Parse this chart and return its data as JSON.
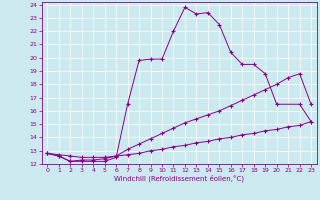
{
  "xlabel": "Windchill (Refroidissement éolien,°C)",
  "background_color": "#cde9f0",
  "line_color": "#880088",
  "xlim": [
    -0.5,
    23.5
  ],
  "ylim": [
    12,
    24.2
  ],
  "xticks": [
    0,
    1,
    2,
    3,
    4,
    5,
    6,
    7,
    8,
    9,
    10,
    11,
    12,
    13,
    14,
    15,
    16,
    17,
    18,
    19,
    20,
    21,
    22,
    23
  ],
  "yticks": [
    12,
    13,
    14,
    15,
    16,
    17,
    18,
    19,
    20,
    21,
    22,
    23,
    24
  ],
  "line1_x": [
    0,
    1,
    2,
    3,
    4,
    5,
    6,
    7,
    8,
    9,
    10,
    11,
    12,
    13,
    14,
    15,
    16,
    17,
    18,
    19,
    20,
    22,
    23
  ],
  "line1_y": [
    12.8,
    12.6,
    12.2,
    12.2,
    12.2,
    12.2,
    12.5,
    16.5,
    19.8,
    19.9,
    19.9,
    22.0,
    23.8,
    23.3,
    23.4,
    22.5,
    20.4,
    19.5,
    19.5,
    18.8,
    16.5,
    16.5,
    15.2
  ],
  "line2_x": [
    0,
    1,
    2,
    3,
    4,
    5,
    6,
    7,
    8,
    9,
    10,
    11,
    12,
    13,
    14,
    15,
    16,
    17,
    18,
    19,
    20,
    21,
    22,
    23
  ],
  "line2_y": [
    12.8,
    12.6,
    12.2,
    12.3,
    12.3,
    12.4,
    12.6,
    13.1,
    13.5,
    13.9,
    14.3,
    14.7,
    15.1,
    15.4,
    15.7,
    16.0,
    16.4,
    16.8,
    17.2,
    17.6,
    18.0,
    18.5,
    18.8,
    16.5
  ],
  "line3_x": [
    0,
    1,
    2,
    3,
    4,
    5,
    6,
    7,
    8,
    9,
    10,
    11,
    12,
    13,
    14,
    15,
    16,
    17,
    18,
    19,
    20,
    21,
    22,
    23
  ],
  "line3_y": [
    12.8,
    12.7,
    12.6,
    12.5,
    12.5,
    12.5,
    12.6,
    12.7,
    12.8,
    13.0,
    13.1,
    13.3,
    13.4,
    13.6,
    13.7,
    13.9,
    14.0,
    14.2,
    14.3,
    14.5,
    14.6,
    14.8,
    14.9,
    15.2
  ]
}
